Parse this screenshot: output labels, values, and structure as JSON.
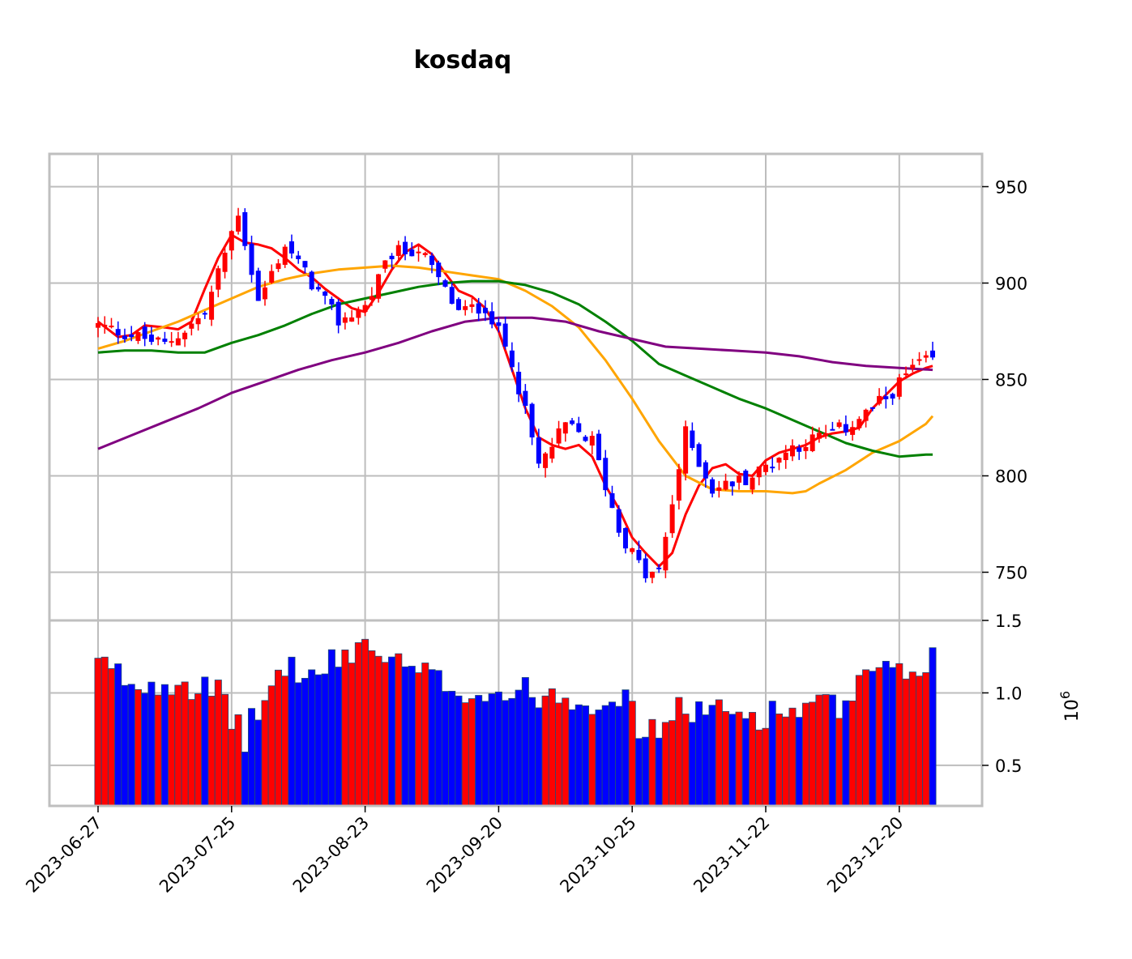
{
  "chart_data": {
    "type": "candlestick",
    "title": "kosdaq",
    "colors": {
      "up": "#ff0000",
      "down": "#0000ff",
      "ma5": "#ff0000",
      "ma20": "#ffa500",
      "ma60": "#008000",
      "ma120": "#800080",
      "grid": "#bdbdbd",
      "frame": "#bfbfbf"
    },
    "price_axis": {
      "ylim": [
        725,
        967
      ],
      "ticks": [
        750,
        800,
        850,
        900,
        950
      ]
    },
    "volume_axis": {
      "ylim": [
        0.22,
        1.5
      ],
      "ticks": [
        "0.5",
        "1.0",
        "1.5"
      ],
      "tick_values": [
        0.5,
        1.0,
        1.5
      ],
      "multiplier_label": "10",
      "multiplier_exp": "6"
    },
    "x_tick_labels": [
      "2023-06-27",
      "2023-07-25",
      "2023-08-23",
      "2023-09-20",
      "2023-10-25",
      "2023-11-22",
      "2023-12-20"
    ],
    "x_tick_indices": [
      0,
      20,
      40,
      60,
      80,
      100,
      120
    ],
    "n_days": 126,
    "ohlc_anchors": [
      [
        0,
        878
      ],
      [
        10,
        868
      ],
      [
        16,
        884
      ],
      [
        21,
        937
      ],
      [
        24,
        890
      ],
      [
        28,
        920
      ],
      [
        32,
        900
      ],
      [
        36,
        880
      ],
      [
        40,
        888
      ],
      [
        44,
        915
      ],
      [
        48,
        918
      ],
      [
        54,
        885
      ],
      [
        58,
        888
      ],
      [
        62,
        860
      ],
      [
        66,
        805
      ],
      [
        70,
        826
      ],
      [
        74,
        818
      ],
      [
        78,
        772
      ],
      [
        82,
        748
      ],
      [
        84,
        750
      ],
      [
        88,
        822
      ],
      [
        92,
        793
      ],
      [
        98,
        800
      ],
      [
        104,
        815
      ],
      [
        112,
        825
      ],
      [
        118,
        840
      ],
      [
        122,
        856
      ],
      [
        125,
        860
      ]
    ],
    "volume_anchors": [
      [
        0,
        1.2
      ],
      [
        6,
        1.05
      ],
      [
        12,
        1.1
      ],
      [
        18,
        0.98
      ],
      [
        22,
        0.7
      ],
      [
        28,
        1.2
      ],
      [
        32,
        1.1
      ],
      [
        40,
        1.35
      ],
      [
        44,
        1.2
      ],
      [
        50,
        1.1
      ],
      [
        56,
        1.0
      ],
      [
        62,
        1.0
      ],
      [
        68,
        1.0
      ],
      [
        74,
        0.95
      ],
      [
        78,
        1.0
      ],
      [
        82,
        0.7
      ],
      [
        88,
        0.9
      ],
      [
        94,
        0.85
      ],
      [
        100,
        0.85
      ],
      [
        106,
        0.9
      ],
      [
        112,
        0.9
      ],
      [
        116,
        1.15
      ],
      [
        120,
        1.1
      ],
      [
        125,
        1.25
      ]
    ],
    "ma_series": [
      {
        "key": "ma5",
        "points": [
          [
            0,
            880
          ],
          [
            3,
            872
          ],
          [
            5,
            873
          ],
          [
            7,
            878
          ],
          [
            10,
            877
          ],
          [
            12,
            876
          ],
          [
            14,
            880
          ],
          [
            16,
            897
          ],
          [
            18,
            913
          ],
          [
            20,
            925
          ],
          [
            22,
            921
          ],
          [
            24,
            920
          ],
          [
            26,
            918
          ],
          [
            28,
            913
          ],
          [
            30,
            907
          ],
          [
            32,
            903
          ],
          [
            34,
            897
          ],
          [
            36,
            892
          ],
          [
            38,
            887
          ],
          [
            40,
            885
          ],
          [
            42,
            895
          ],
          [
            44,
            907
          ],
          [
            46,
            916
          ],
          [
            48,
            920
          ],
          [
            50,
            915
          ],
          [
            52,
            905
          ],
          [
            54,
            896
          ],
          [
            56,
            893
          ],
          [
            58,
            887
          ],
          [
            60,
            875
          ],
          [
            62,
            855
          ],
          [
            64,
            835
          ],
          [
            66,
            820
          ],
          [
            68,
            816
          ],
          [
            70,
            814
          ],
          [
            72,
            816
          ],
          [
            74,
            810
          ],
          [
            76,
            795
          ],
          [
            78,
            783
          ],
          [
            80,
            768
          ],
          [
            82,
            760
          ],
          [
            84,
            753
          ],
          [
            86,
            760
          ],
          [
            88,
            780
          ],
          [
            90,
            795
          ],
          [
            92,
            804
          ],
          [
            94,
            806
          ],
          [
            96,
            801
          ],
          [
            98,
            800
          ],
          [
            100,
            808
          ],
          [
            102,
            812
          ],
          [
            104,
            814
          ],
          [
            106,
            816
          ],
          [
            108,
            820
          ],
          [
            110,
            822
          ],
          [
            112,
            823
          ],
          [
            114,
            825
          ],
          [
            116,
            835
          ],
          [
            118,
            842
          ],
          [
            120,
            849
          ],
          [
            122,
            853
          ],
          [
            124,
            856
          ],
          [
            125,
            857
          ]
        ]
      },
      {
        "key": "ma20",
        "points": [
          [
            0,
            866
          ],
          [
            4,
            870
          ],
          [
            8,
            875
          ],
          [
            12,
            880
          ],
          [
            16,
            886
          ],
          [
            20,
            892
          ],
          [
            24,
            898
          ],
          [
            28,
            902
          ],
          [
            32,
            905
          ],
          [
            36,
            907
          ],
          [
            40,
            908
          ],
          [
            44,
            909
          ],
          [
            48,
            908
          ],
          [
            52,
            906
          ],
          [
            56,
            904
          ],
          [
            60,
            902
          ],
          [
            64,
            896
          ],
          [
            68,
            888
          ],
          [
            72,
            877
          ],
          [
            76,
            860
          ],
          [
            80,
            840
          ],
          [
            84,
            818
          ],
          [
            88,
            800
          ],
          [
            92,
            793
          ],
          [
            96,
            792
          ],
          [
            100,
            792
          ],
          [
            104,
            791
          ],
          [
            106,
            792
          ],
          [
            108,
            796
          ],
          [
            112,
            803
          ],
          [
            116,
            812
          ],
          [
            120,
            818
          ],
          [
            124,
            827
          ],
          [
            125,
            831
          ]
        ]
      },
      {
        "key": "ma60",
        "points": [
          [
            0,
            864
          ],
          [
            4,
            865
          ],
          [
            8,
            865
          ],
          [
            12,
            864
          ],
          [
            16,
            864
          ],
          [
            20,
            869
          ],
          [
            24,
            873
          ],
          [
            28,
            878
          ],
          [
            32,
            884
          ],
          [
            36,
            889
          ],
          [
            40,
            892
          ],
          [
            44,
            895
          ],
          [
            48,
            898
          ],
          [
            52,
            900
          ],
          [
            56,
            901
          ],
          [
            60,
            901
          ],
          [
            64,
            899
          ],
          [
            68,
            895
          ],
          [
            72,
            889
          ],
          [
            76,
            880
          ],
          [
            80,
            870
          ],
          [
            84,
            858
          ],
          [
            88,
            852
          ],
          [
            92,
            846
          ],
          [
            96,
            840
          ],
          [
            100,
            835
          ],
          [
            104,
            829
          ],
          [
            108,
            823
          ],
          [
            112,
            817
          ],
          [
            116,
            813
          ],
          [
            120,
            810
          ],
          [
            124,
            811
          ],
          [
            125,
            811
          ]
        ]
      },
      {
        "key": "ma120",
        "points": [
          [
            0,
            814
          ],
          [
            5,
            821
          ],
          [
            10,
            828
          ],
          [
            15,
            835
          ],
          [
            20,
            843
          ],
          [
            25,
            849
          ],
          [
            30,
            855
          ],
          [
            35,
            860
          ],
          [
            40,
            864
          ],
          [
            45,
            869
          ],
          [
            50,
            875
          ],
          [
            55,
            880
          ],
          [
            60,
            882
          ],
          [
            65,
            882
          ],
          [
            70,
            880
          ],
          [
            75,
            875
          ],
          [
            80,
            871
          ],
          [
            85,
            867
          ],
          [
            90,
            866
          ],
          [
            95,
            865
          ],
          [
            100,
            864
          ],
          [
            105,
            862
          ],
          [
            110,
            859
          ],
          [
            115,
            857
          ],
          [
            120,
            856
          ],
          [
            125,
            855
          ]
        ]
      }
    ]
  }
}
